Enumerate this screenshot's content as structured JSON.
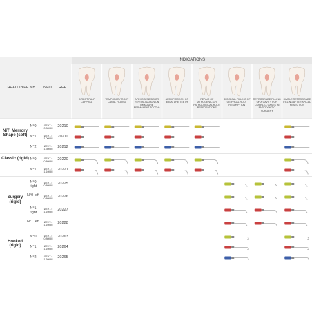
{
  "header": {
    "indications_title": "INDICATIONS",
    "columns": [
      "HEAD TYPE",
      "NB.",
      "INFO.",
      "REF."
    ]
  },
  "indications": [
    "DIRECT PULP CAPPING.",
    "TEMPORARY ROOT CANAL FILLING",
    "APEXOGENESIS OR REVITALISATION ON IMMATURE PERMANENT TOOTH+",
    "APEXIFICATION OF IMMATURE TEETH",
    "REPAIR OF IATROGENIC OR PATHOLOGICAL ROOT PERFORATIONS",
    "SURGICAL FILLING OF CERVICAL ROOT RESORPTION",
    "RETROGRADE FILLING OF A CAVITY FOR COMPLEX CASES IN ENDODONTIC SURGERY",
    "SIMPLE RETROGRADE FILLING AFTER APICAL RESECTION"
  ],
  "groups": [
    {
      "head_type": "NiTi Memory Shape (soft)",
      "rows": [
        {
          "nb": "N°0",
          "info": "ØEXT.= 0.80MM",
          "ref": "20210",
          "color": "#c9b832",
          "uses": [
            true,
            true,
            true,
            true,
            true,
            false,
            false,
            true
          ]
        },
        {
          "nb": "N°1",
          "info": "ØEXT.= 1.00MM",
          "ref": "20211",
          "color": "#c94040",
          "uses": [
            true,
            true,
            true,
            true,
            true,
            false,
            false,
            true
          ]
        },
        {
          "nb": "N°2",
          "info": "ØEXT.= 1.30MM",
          "ref": "20212",
          "color": "#3d5fa8",
          "uses": [
            true,
            true,
            true,
            true,
            true,
            false,
            false,
            true
          ]
        }
      ]
    },
    {
      "head_type": "Classic (rigid)",
      "rows": [
        {
          "nb": "N°0",
          "info": "ØEXT.= 0.80MM",
          "ref": "20220",
          "color": "#b6c23a",
          "uses": [
            true,
            true,
            true,
            true,
            true,
            false,
            false,
            true
          ]
        },
        {
          "nb": "N°1",
          "info": "ØEXT.= 1.10MM",
          "ref": "20221",
          "color": "#c94040",
          "uses": [
            true,
            true,
            true,
            true,
            true,
            false,
            false,
            true
          ]
        }
      ]
    },
    {
      "head_type": "Surgery (rigid)",
      "rows": [
        {
          "nb": "N°0 right",
          "info": "ØEXT.= 0.80MM",
          "ref": "20225",
          "color": "#b6c23a",
          "uses": [
            false,
            false,
            false,
            false,
            false,
            true,
            true,
            true
          ]
        },
        {
          "nb": "N°0 left",
          "info": "ØEXT.= 0.80MM",
          "ref": "20226",
          "color": "#b6c23a",
          "uses": [
            false,
            false,
            false,
            false,
            false,
            true,
            true,
            true
          ]
        },
        {
          "nb": "N°1 right",
          "info": "ØEXT.= 1.10MM",
          "ref": "20227",
          "color": "#c94040",
          "uses": [
            false,
            false,
            false,
            false,
            false,
            true,
            true,
            true
          ]
        },
        {
          "nb": "N°1 left",
          "info": "ØEXT.= 1.10MM",
          "ref": "20228",
          "color": "#c94040",
          "uses": [
            false,
            false,
            false,
            false,
            false,
            true,
            true,
            true
          ]
        }
      ]
    },
    {
      "head_type": "Hooked (rigid)",
      "rows": [
        {
          "nb": "N°0",
          "info": "ØEXT.= 0.80MM",
          "ref": "20263",
          "color": "#b6c23a",
          "uses": [
            false,
            false,
            false,
            false,
            false,
            true,
            false,
            true
          ]
        },
        {
          "nb": "N°1",
          "info": "ØEXT.= 1.10MM",
          "ref": "20264",
          "color": "#c94040",
          "uses": [
            false,
            false,
            false,
            false,
            false,
            true,
            false,
            true
          ]
        },
        {
          "nb": "N°2",
          "info": "ØEXT.= 1.30MM",
          "ref": "20265",
          "color": "#3d5fa8",
          "uses": [
            false,
            false,
            false,
            false,
            false,
            true,
            false,
            true
          ]
        }
      ]
    }
  ]
}
